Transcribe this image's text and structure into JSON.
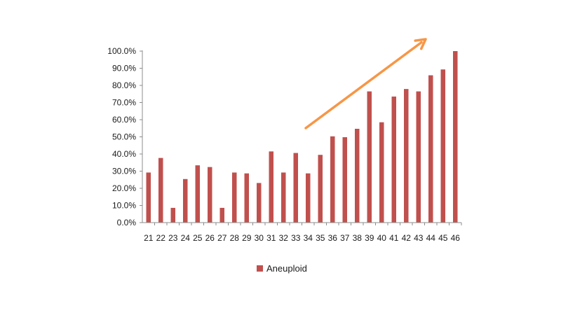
{
  "chart_data": {
    "type": "bar",
    "categories": [
      "21",
      "22",
      "23",
      "24",
      "25",
      "26",
      "27",
      "28",
      "29",
      "30",
      "31",
      "32",
      "33",
      "34",
      "35",
      "36",
      "37",
      "38",
      "39",
      "40",
      "41",
      "42",
      "43",
      "44",
      "45",
      "46"
    ],
    "series": [
      {
        "name": "Aneuploid",
        "color": "#c0504d",
        "values": [
          29.2,
          37.7,
          8.6,
          25.4,
          33.4,
          32.4,
          8.6,
          29.2,
          28.7,
          23.1,
          41.5,
          29.2,
          40.6,
          28.7,
          39.5,
          50.3,
          49.8,
          54.7,
          76.5,
          58.5,
          73.5,
          77.9,
          76.5,
          85.9,
          89.3,
          100.0
        ]
      }
    ],
    "y_ticks": [
      "0.0%",
      "10.0%",
      "20.0%",
      "30.0%",
      "40.0%",
      "50.0%",
      "60.0%",
      "70.0%",
      "80.0%",
      "90.0%",
      "100.0%"
    ],
    "ylim": [
      0,
      100
    ],
    "grid": false,
    "legend_position": "bottom",
    "annotation": {
      "type": "trend-arrow",
      "color": "#f79646"
    },
    "title": "",
    "xlabel": "",
    "ylabel": ""
  }
}
